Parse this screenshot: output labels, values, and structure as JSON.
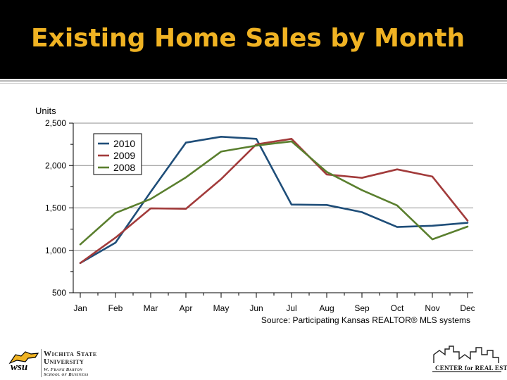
{
  "slide": {
    "title": "Existing Home Sales by Month",
    "source": "Source: Participating Kansas REALTOR® MLS systems"
  },
  "colors": {
    "header_bg": "#000000",
    "title": "#F0B323",
    "series_2010": "#1F4E79",
    "series_2009": "#A23B3B",
    "series_2008": "#5A7F2E"
  },
  "chart_data": {
    "type": "line",
    "title": "",
    "xlabel": "",
    "ylabel": "Units",
    "categories": [
      "Jan",
      "Feb",
      "Mar",
      "Apr",
      "May",
      "Jun",
      "Jul",
      "Aug",
      "Sep",
      "Oct",
      "Nov",
      "Dec"
    ],
    "ylim": [
      500,
      2500
    ],
    "yticks": [
      500,
      1000,
      1500,
      2000,
      2500
    ],
    "ytick_labels": [
      "500",
      "1,000",
      "1,500",
      "2,000",
      "2,500"
    ],
    "grid": "horizontal",
    "legend_position": "top-left",
    "series": [
      {
        "name": "2010",
        "color": "#1F4E79",
        "values": [
          850,
          1090,
          1690,
          2270,
          2340,
          2315,
          1540,
          1535,
          1450,
          1275,
          1290,
          1325
        ]
      },
      {
        "name": "2009",
        "color": "#A23B3B",
        "values": [
          850,
          1150,
          1495,
          1490,
          1840,
          2250,
          2315,
          1895,
          1855,
          1955,
          1870,
          1350
        ]
      },
      {
        "name": "2008",
        "color": "#5A7F2E",
        "values": [
          1070,
          1440,
          1605,
          1860,
          2165,
          2235,
          2285,
          1925,
          1710,
          1530,
          1130,
          1280
        ]
      }
    ]
  },
  "footer": {
    "left_logo": {
      "monogram": "wsu",
      "line1": "Wichita State",
      "line2": "University",
      "line3": "W. Frank Barton",
      "line4": "School of Business"
    },
    "right_logo": {
      "text": "CENTER for REAL ESTATE"
    }
  }
}
